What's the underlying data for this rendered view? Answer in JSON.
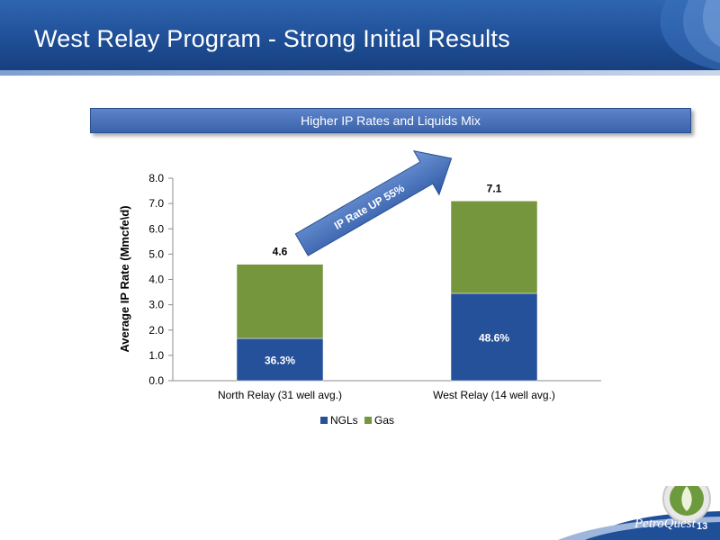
{
  "slide": {
    "title": "West Relay Program - Strong Initial Results",
    "banner": "Higher IP Rates and Liquids Mix",
    "page_number": "13",
    "brand": "PetroQuest"
  },
  "colors": {
    "header": "#1f4f97",
    "ngls": "#25519b",
    "gas": "#76963d",
    "arrow": "#3f6bb8"
  },
  "chart_data": {
    "type": "bar",
    "stacked": true,
    "categories": [
      "North Relay (31 well avg.)",
      "West Relay (14 well avg.)"
    ],
    "series": [
      {
        "name": "NGLs",
        "values": [
          1.67,
          3.45
        ],
        "labels": [
          "36.3%",
          "48.6%"
        ]
      },
      {
        "name": "Gas",
        "values": [
          2.93,
          3.65
        ],
        "labels": [
          "",
          ""
        ]
      }
    ],
    "totals": [
      4.6,
      7.1
    ],
    "total_labels": [
      "4.6",
      "7.1"
    ],
    "ylabel": "Average IP Rate (Mmcfe\\d)",
    "xlabel": "",
    "ylim": [
      0,
      8
    ],
    "yticks": [
      "0.0",
      "1.0",
      "2.0",
      "3.0",
      "4.0",
      "5.0",
      "6.0",
      "7.0",
      "8.0"
    ],
    "grid": false,
    "legend_position": "bottom",
    "annotation": "IP Rate UP 55%"
  }
}
